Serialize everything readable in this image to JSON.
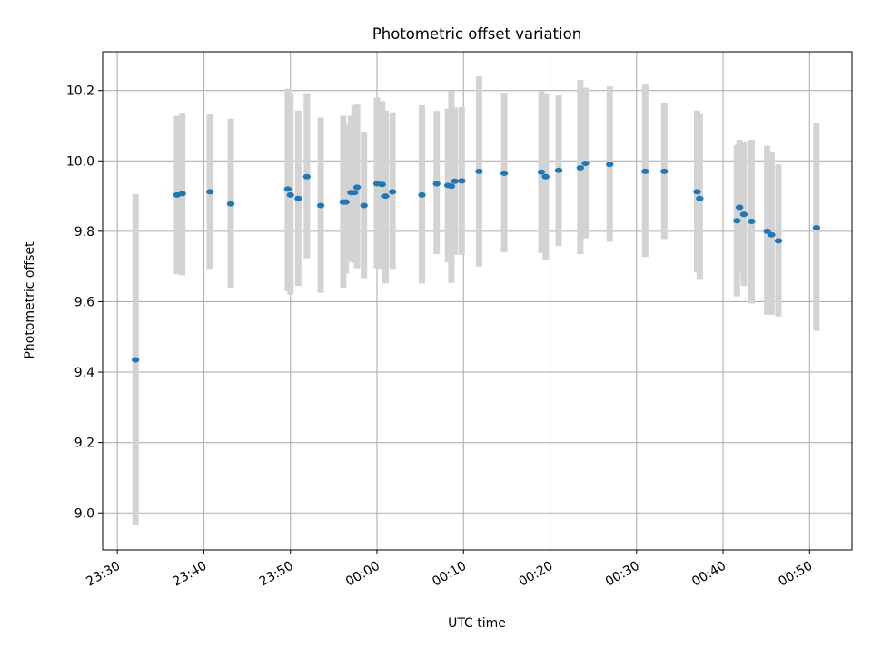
{
  "chart_data": {
    "type": "scatter",
    "title": "Photometric offset variation",
    "xlabel": "UTC time",
    "ylabel": "Photometric offset",
    "x_ticks": [
      "23:30",
      "23:40",
      "23:50",
      "00:00",
      "00:10",
      "00:20",
      "00:30",
      "00:40",
      "00:50"
    ],
    "x_tick_minutes": [
      0,
      10,
      20,
      30,
      40,
      50,
      60,
      70,
      80
    ],
    "xlim_minutes": [
      -1.7,
      84.9
    ],
    "y_ticks": [
      "9.0",
      "9.2",
      "9.4",
      "9.6",
      "9.8",
      "10.0",
      "10.2"
    ],
    "y_tick_values": [
      9.0,
      9.2,
      9.4,
      9.6,
      9.8,
      10.0,
      10.2
    ],
    "ylim": [
      8.895,
      10.31
    ],
    "grid": true,
    "colors": {
      "points": "#1f77b4",
      "errorbars": "#d3d3d3",
      "grid": "#b0b0b0"
    },
    "x_time": [
      "23:32:06",
      "23:36:54",
      "23:37:30",
      "23:40:42",
      "23:43:06",
      "23:49:42",
      "23:50:00",
      "23:50:54",
      "23:51:54",
      "23:53:30",
      "23:56:06",
      "23:56:24",
      "23:57:00",
      "23:57:24",
      "23:57:42",
      "23:58:30",
      "00:00:00",
      "00:00:36",
      "00:01:00",
      "00:01:48",
      "00:05:12",
      "00:06:54",
      "00:08:12",
      "00:08:36",
      "00:09:00",
      "00:09:48",
      "00:11:48",
      "00:14:42",
      "00:19:00",
      "00:19:30",
      "00:21:00",
      "00:23:30",
      "00:24:06",
      "00:26:54",
      "00:31:00",
      "00:33:12",
      "00:37:00",
      "00:37:18",
      "00:41:36",
      "00:41:54",
      "00:42:24",
      "00:43:18",
      "00:45:06",
      "00:45:36",
      "00:46:24",
      "00:50:48"
    ],
    "y": [
      9.435,
      9.903,
      9.907,
      9.912,
      9.878,
      9.92,
      9.903,
      9.893,
      9.955,
      9.873,
      9.883,
      9.883,
      9.91,
      9.91,
      9.925,
      9.873,
      9.935,
      9.933,
      9.9,
      9.912,
      9.903,
      9.935,
      9.93,
      9.928,
      9.942,
      9.943,
      9.97,
      9.965,
      9.968,
      9.955,
      9.973,
      9.98,
      9.993,
      9.99,
      9.97,
      9.97,
      9.912,
      9.893,
      9.83,
      9.868,
      9.848,
      9.828,
      9.8,
      9.79,
      9.773,
      9.81
    ],
    "err_low": [
      8.965,
      9.678,
      9.675,
      9.693,
      9.64,
      9.63,
      9.62,
      9.645,
      9.723,
      9.625,
      9.64,
      9.68,
      9.713,
      9.71,
      9.695,
      9.667,
      9.695,
      9.693,
      9.652,
      9.693,
      9.652,
      9.735,
      9.712,
      9.653,
      9.733,
      9.733,
      9.7,
      9.74,
      9.738,
      9.72,
      9.758,
      9.735,
      9.78,
      9.77,
      9.727,
      9.778,
      9.683,
      9.662,
      9.615,
      9.685,
      9.645,
      9.595,
      9.563,
      9.563,
      9.558,
      9.517
    ],
    "err_high": [
      9.905,
      10.128,
      10.137,
      10.132,
      10.12,
      10.205,
      10.19,
      10.143,
      10.19,
      10.123,
      10.128,
      10.105,
      10.128,
      10.158,
      10.16,
      10.082,
      10.18,
      10.17,
      10.143,
      10.138,
      10.158,
      10.142,
      10.148,
      10.198,
      10.152,
      10.153,
      10.24,
      10.192,
      10.198,
      10.19,
      10.186,
      10.23,
      10.208,
      10.212,
      10.217,
      10.165,
      10.143,
      10.133,
      10.045,
      10.06,
      10.055,
      10.06,
      10.043,
      10.025,
      9.99,
      10.107
    ]
  }
}
